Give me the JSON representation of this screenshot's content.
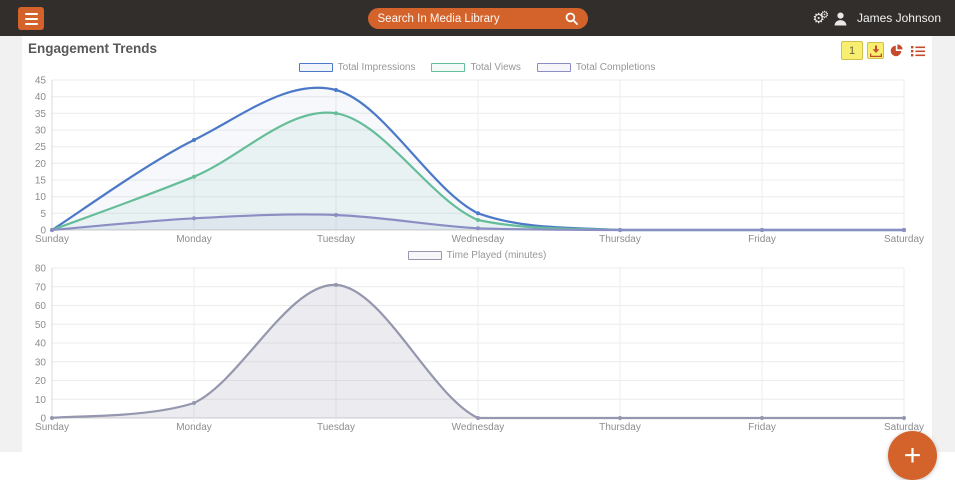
{
  "topbar": {
    "search_placeholder": "Search In Media Library",
    "user_name": "James Johnson"
  },
  "page": {
    "title": "Engagement Trends"
  },
  "chart_toolbar": {
    "badge": "1"
  },
  "colors": {
    "accent_orange": "#d4632b",
    "topbar_bg": "#322e2b",
    "tool_icon_red": "#c64b2e",
    "badge_yellow": "#f8ef71",
    "impressions_blue": "#4b79c8",
    "views_green": "#66bd99",
    "completions_purple": "#8b8ec4",
    "time_played_gray": "#9597ae"
  },
  "chart_data": [
    {
      "type": "line",
      "title": "",
      "categories": [
        "Sunday",
        "Monday",
        "Tuesday",
        "Wednesday",
        "Thursday",
        "Friday",
        "Saturday"
      ],
      "series": [
        {
          "name": "Total Impressions",
          "color": "#4b79c8",
          "fill_alpha": 0.05,
          "values": [
            0,
            27,
            42,
            5,
            0,
            0,
            0
          ]
        },
        {
          "name": "Total Views",
          "color": "#66bd99",
          "fill_alpha": 0.09,
          "values": [
            0,
            16,
            35,
            3,
            0,
            0,
            0
          ]
        },
        {
          "name": "Total Completions",
          "color": "#8b8ec4",
          "fill_alpha": 0.1,
          "values": [
            0,
            3.5,
            4.5,
            0.5,
            0,
            0,
            0
          ]
        }
      ],
      "ylim": [
        0,
        45
      ],
      "ytick": 5,
      "grid": true,
      "legend_position": "top"
    },
    {
      "type": "line",
      "title": "",
      "categories": [
        "Sunday",
        "Monday",
        "Tuesday",
        "Wednesday",
        "Thursday",
        "Friday",
        "Saturday"
      ],
      "series": [
        {
          "name": "Time Played (minutes)",
          "color": "#9597ae",
          "fill_alpha": 0.18,
          "values": [
            0,
            8,
            71,
            0,
            0,
            0,
            0
          ]
        }
      ],
      "ylim": [
        0,
        80
      ],
      "ytick": 10,
      "grid": true,
      "legend_position": "top"
    }
  ],
  "fab_label": "+"
}
